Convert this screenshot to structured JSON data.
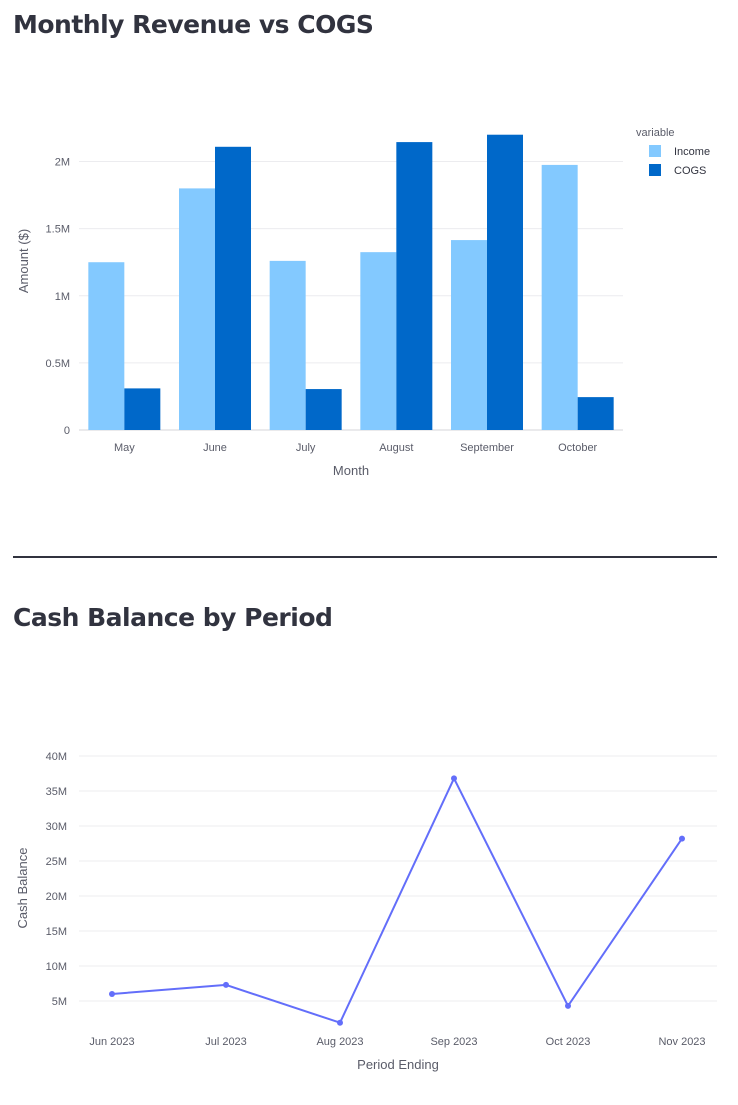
{
  "page": {
    "title1": "Monthly Revenue vs COGS",
    "title2": "Cash Balance by Period"
  },
  "chart_data": [
    {
      "type": "bar",
      "title": "Monthly Revenue vs COGS",
      "xlabel": "Month",
      "ylabel": "Amount ($)",
      "categories": [
        "May",
        "June",
        "July",
        "August",
        "September",
        "October"
      ],
      "series": [
        {
          "name": "Income",
          "values": [
            1250000,
            1800000,
            1260000,
            1325000,
            1415000,
            1975000
          ],
          "color": "#83c9ff"
        },
        {
          "name": "COGS",
          "values": [
            310000,
            2110000,
            305000,
            2145000,
            2200000,
            245000
          ],
          "color": "#0068c9"
        }
      ],
      "yticks": [
        0,
        500000,
        1000000,
        1500000,
        2000000
      ],
      "ytick_labels": [
        "0",
        "0.5M",
        "1M",
        "1.5M",
        "2M"
      ],
      "ylim": [
        0,
        2250000
      ],
      "legend": {
        "title": "variable",
        "placement": "top-right"
      },
      "grid": true
    },
    {
      "type": "line",
      "title": "Cash Balance by Period",
      "xlabel": "Period Ending",
      "ylabel": "Cash Balance",
      "categories": [
        "Jun 2023",
        "Jul 2023",
        "Aug 2023",
        "Sep 2023",
        "Oct 2023",
        "Nov 2023"
      ],
      "series": [
        {
          "values": [
            6000000,
            7300000,
            1900000,
            36800000,
            4300000,
            28200000
          ],
          "color": "#636efa"
        }
      ],
      "yticks": [
        5000000,
        10000000,
        15000000,
        20000000,
        25000000,
        30000000,
        35000000,
        40000000
      ],
      "ytick_labels": [
        "5M",
        "10M",
        "15M",
        "20M",
        "25M",
        "30M",
        "35M",
        "40M"
      ],
      "ylim": [
        1000000,
        40000000
      ],
      "grid": true
    }
  ]
}
